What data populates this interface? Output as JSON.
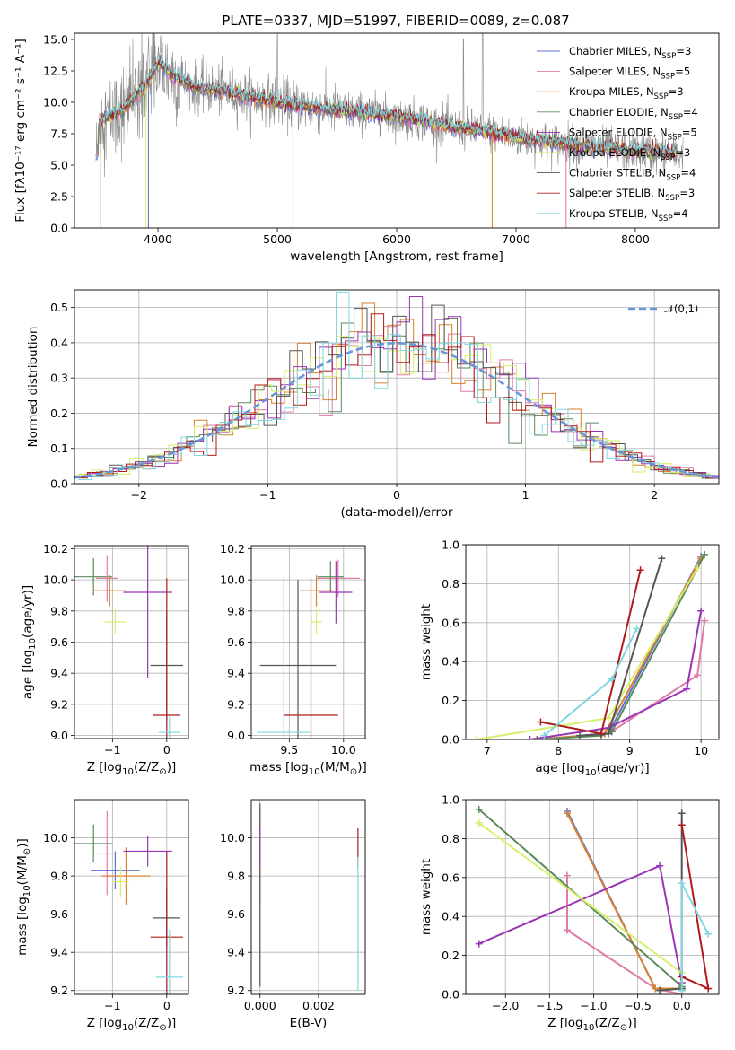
{
  "colors": {
    "chabrier_miles": "#5b6fd6",
    "salpeter_miles": "#e07aa8",
    "kroupa_miles": "#d9822b",
    "chabrier_elodie": "#5a8a5a",
    "salpeter_elodie": "#9a35b5",
    "kroupa_elodie": "#d6ef6a",
    "chabrier_stelib": "#555555",
    "salpeter_stelib": "#b01a1a",
    "kroupa_stelib": "#7fd8e0",
    "data_spectrum": "#8a8a8a",
    "normal_curve": "#6a96d8"
  },
  "chart_data": [
    {
      "type": "line",
      "title": "PLATE=0337, MJD=51997, FIBERID=0089, z=0.087",
      "xlabel": "wavelength [Angstrom, rest frame]",
      "ylabel": "Flux [fλ10⁻¹⁷ erg cm⁻² s⁻¹ A⁻¹]",
      "xlim": [
        3300,
        8700
      ],
      "ylim": [
        0,
        15.5
      ],
      "xticks": [
        4000,
        5000,
        6000,
        7000,
        8000
      ],
      "yticks": [
        0.0,
        2.5,
        5.0,
        7.5,
        10.0,
        12.5,
        15.0
      ],
      "legend_position": "top-right",
      "series": [
        {
          "name": "Chabrier MILES, N$_{SSP}$=3",
          "key": "chabrier_miles"
        },
        {
          "name": "Salpeter MILES, N$_{SSP}$=5",
          "key": "salpeter_miles"
        },
        {
          "name": "Kroupa MILES, N$_{SSP}$=3",
          "key": "kroupa_miles"
        },
        {
          "name": "Chabrier ELODIE, N$_{SSP}$=4",
          "key": "chabrier_elodie"
        },
        {
          "name": "Salpeter ELODIE, N$_{SSP}$=5",
          "key": "salpeter_elodie"
        },
        {
          "name": "Kroupa ELODIE, N$_{SSP}$=3",
          "key": "kroupa_elodie"
        },
        {
          "name": "Chabrier STELIB, N$_{SSP}$=4",
          "key": "chabrier_stelib"
        },
        {
          "name": "Salpeter STELIB, N$_{SSP}$=3",
          "key": "salpeter_stelib"
        },
        {
          "name": "Kroupa STELIB, N$_{SSP}$=4",
          "key": "kroupa_stelib"
        }
      ],
      "model_curve": {
        "x": [
          3500,
          3700,
          3900,
          4000,
          4100,
          4300,
          4500,
          4800,
          5000,
          5300,
          5600,
          5900,
          6200,
          6500,
          6800,
          7000,
          7300,
          7600,
          7900,
          8200,
          8400
        ],
        "y": [
          8.6,
          9.3,
          11.5,
          13.2,
          12.3,
          11.2,
          11.0,
          10.4,
          10.0,
          9.6,
          9.3,
          9.0,
          8.6,
          8.0,
          7.6,
          7.2,
          6.8,
          6.5,
          6.2,
          6.0,
          5.9
        ]
      }
    },
    {
      "type": "histogram",
      "xlabel": "(data-model)/error",
      "ylabel": "Normed distribution",
      "xlim": [
        -2.5,
        2.5
      ],
      "ylim": [
        0,
        0.55
      ],
      "xticks": [
        -2,
        -1,
        0,
        1,
        2
      ],
      "yticks": [
        0.0,
        0.1,
        0.2,
        0.3,
        0.4,
        0.5
      ],
      "legend": {
        "label": "$\\mathcal{N}(0,1)$",
        "position": "top-right"
      },
      "bin_width": 0.1
    },
    {
      "type": "scatter",
      "xlabel": "Z [log$_{10}$(Z/Z$_\\odot$)]",
      "ylabel": "age  [log$_{10}$($age/yr$)]",
      "xlim": [
        -1.7,
        0.4
      ],
      "ylim": [
        8.98,
        10.22
      ],
      "xticks": [
        -1,
        0
      ],
      "yticks": [
        9.0,
        9.2,
        9.4,
        9.6,
        9.8,
        10.0,
        10.2
      ],
      "points": [
        {
          "key": "chabrier_elodie",
          "x": -1.35,
          "y": 10.02,
          "xerr": 0.35,
          "yerr": 0.12
        },
        {
          "key": "salpeter_miles",
          "x": -1.1,
          "y": 10.01,
          "xerr": 0.2,
          "yerr": 0.15
        },
        {
          "key": "kroupa_miles",
          "x": -1.05,
          "y": 9.93,
          "xerr": 0.3,
          "yerr": 0.1
        },
        {
          "key": "salpeter_elodie",
          "x": -0.35,
          "y": 9.92,
          "xerr": 0.45,
          "yerr": 0.55
        },
        {
          "key": "kroupa_elodie",
          "x": -0.95,
          "y": 9.73,
          "xerr": 0.2,
          "yerr": 0.08
        },
        {
          "key": "chabrier_stelib",
          "x": 0.0,
          "y": 9.45,
          "xerr": 0.3,
          "yerr": 0.35
        },
        {
          "key": "salpeter_stelib",
          "x": 0.0,
          "y": 9.13,
          "xerr": 0.25,
          "yerr": 0.88
        },
        {
          "key": "kroupa_stelib",
          "x": 0.05,
          "y": 9.02,
          "xerr": 0.2,
          "yerr": 0.1
        }
      ]
    },
    {
      "type": "scatter",
      "xlabel": "mass [log$_{10}$($M/M_\\odot$)]",
      "xlim": [
        9.15,
        10.2
      ],
      "ylim": [
        8.98,
        10.22
      ],
      "xticks": [
        9.5,
        10.0
      ],
      "yticks": [
        9.0,
        9.2,
        9.4,
        9.6,
        9.8,
        10.0,
        10.2
      ],
      "points": [
        {
          "key": "salpeter_miles",
          "x": 9.95,
          "y": 10.01,
          "xerr": 0.2,
          "yerr": 0.12
        },
        {
          "key": "kroupa_miles",
          "x": 9.75,
          "y": 9.93,
          "xerr": 0.15,
          "yerr": 0.1
        },
        {
          "key": "chabrier_elodie",
          "x": 9.88,
          "y": 10.02,
          "xerr": 0.12,
          "yerr": 0.1
        },
        {
          "key": "salpeter_elodie",
          "x": 9.93,
          "y": 9.92,
          "xerr": 0.15,
          "yerr": 0.2
        },
        {
          "key": "kroupa_elodie",
          "x": 9.75,
          "y": 9.73,
          "xerr": 0.05,
          "yerr": 0.08
        },
        {
          "key": "chabrier_stelib",
          "x": 9.58,
          "y": 9.45,
          "xerr": 0.35,
          "yerr": 0.55
        },
        {
          "key": "salpeter_stelib",
          "x": 9.7,
          "y": 9.13,
          "xerr": 0.25,
          "yerr": 0.88
        },
        {
          "key": "kroupa_stelib",
          "x": 9.45,
          "y": 9.02,
          "xerr": 0.25,
          "yerr": 1.0
        }
      ]
    },
    {
      "type": "line",
      "xlabel": "age  [log$_{10}$($age/yr$)]",
      "ylabel": "mass weight",
      "xlim": [
        6.7,
        10.25
      ],
      "ylim": [
        0,
        1.0
      ],
      "xticks": [
        7,
        8,
        9,
        10
      ],
      "yticks": [
        0.0,
        0.2,
        0.4,
        0.6,
        0.8,
        1.0
      ],
      "series": [
        {
          "key": "chabrier_miles",
          "x": [
            7.8,
            8.6,
            8.7,
            10.0
          ],
          "y": [
            0.0,
            0.03,
            0.03,
            0.94
          ]
        },
        {
          "key": "salpeter_miles",
          "x": [
            7.7,
            8.7,
            9.95,
            10.05
          ],
          "y": [
            0.0,
            0.03,
            0.33,
            0.61
          ]
        },
        {
          "key": "kroupa_miles",
          "x": [
            7.7,
            8.65,
            10.0
          ],
          "y": [
            0.0,
            0.03,
            0.93
          ]
        },
        {
          "key": "chabrier_elodie",
          "x": [
            7.7,
            8.6,
            8.75,
            10.05
          ],
          "y": [
            0.0,
            0.02,
            0.04,
            0.95
          ]
        },
        {
          "key": "salpeter_elodie",
          "x": [
            7.6,
            8.7,
            9.8,
            10.0
          ],
          "y": [
            0.0,
            0.06,
            0.26,
            0.66
          ]
        },
        {
          "key": "kroupa_elodie",
          "x": [
            6.85,
            8.7,
            9.95
          ],
          "y": [
            0.0,
            0.11,
            0.88
          ]
        },
        {
          "key": "chabrier_stelib",
          "x": [
            8.3,
            8.7,
            9.45
          ],
          "y": [
            0.02,
            0.03,
            0.93
          ]
        },
        {
          "key": "salpeter_stelib",
          "x": [
            7.75,
            8.6,
            9.15
          ],
          "y": [
            0.09,
            0.03,
            0.87
          ]
        },
        {
          "key": "kroupa_stelib",
          "x": [
            7.8,
            8.75,
            9.1
          ],
          "y": [
            0.02,
            0.31,
            0.57
          ]
        }
      ]
    },
    {
      "type": "scatter",
      "xlabel": "Z [log$_{10}$(Z/Z$_\\odot$)]",
      "ylabel": "mass [log$_{10}$($M/M_\\odot$)]",
      "xlim": [
        -1.7,
        0.4
      ],
      "ylim": [
        9.18,
        10.2
      ],
      "xticks": [
        -1,
        0
      ],
      "yticks": [
        9.2,
        9.4,
        9.6,
        9.8,
        10.0
      ],
      "points": [
        {
          "key": "chabrier_elodie",
          "x": -1.35,
          "y": 9.97,
          "xerr": 0.35,
          "yerr": 0.1
        },
        {
          "key": "salpeter_miles",
          "x": -1.1,
          "y": 9.92,
          "xerr": 0.2,
          "yerr": 0.22
        },
        {
          "key": "chabrier_miles",
          "x": -0.95,
          "y": 9.83,
          "xerr": 0.45,
          "yerr": 0.1
        },
        {
          "key": "kroupa_miles",
          "x": -0.75,
          "y": 9.8,
          "xerr": 0.45,
          "yerr": 0.15
        },
        {
          "key": "salpeter_elodie",
          "x": -0.35,
          "y": 9.93,
          "xerr": 0.45,
          "yerr": 0.08
        },
        {
          "key": "kroupa_elodie",
          "x": -0.85,
          "y": 9.77,
          "xerr": 0.15,
          "yerr": 0.08
        },
        {
          "key": "chabrier_stelib",
          "x": 0.0,
          "y": 9.58,
          "xerr": 0.25,
          "yerr": 0.15
        },
        {
          "key": "salpeter_stelib",
          "x": 0.0,
          "y": 9.48,
          "xerr": 0.3,
          "yerr": 0.45
        },
        {
          "key": "kroupa_stelib",
          "x": 0.05,
          "y": 9.27,
          "xerr": 0.25,
          "yerr": 0.25
        }
      ]
    },
    {
      "type": "scatter",
      "xlabel": "E(B-V)",
      "xlim": [
        -0.0003,
        0.0036
      ],
      "ylim": [
        9.18,
        10.2
      ],
      "xticks": [
        0.0,
        0.002
      ],
      "xtick_labels": [
        "0.000",
        "0.002"
      ],
      "yticks": [
        9.2,
        9.4,
        9.6,
        9.8,
        10.0
      ],
      "points": [
        {
          "key": "salpeter_miles",
          "x": 0.0,
          "y": 9.9,
          "yerr": 0.25
        },
        {
          "key": "chabrier_stelib",
          "x": 0.0,
          "y": 9.7,
          "yerr": 0.48
        },
        {
          "key": "salpeter_elodie",
          "x": 0.0,
          "y": 9.95,
          "yerr": 0.1
        },
        {
          "key": "salpeter_stelib",
          "x": 0.00335,
          "y": 9.95,
          "yerr": 0.1
        },
        {
          "key": "kroupa_stelib",
          "x": 0.00335,
          "y": 9.55,
          "yerr": 0.35
        }
      ]
    },
    {
      "type": "line",
      "xlabel": "Z [log$_{10}$(Z/Z$_\\odot$)]",
      "ylabel": "mass weight",
      "xlim": [
        -2.45,
        0.42
      ],
      "ylim": [
        0,
        1.0
      ],
      "xticks": [
        -2.0,
        -1.5,
        -1.0,
        -0.5,
        0.0
      ],
      "yticks": [
        0.0,
        0.2,
        0.4,
        0.6,
        0.8,
        1.0
      ],
      "series": [
        {
          "key": "chabrier_miles",
          "x": [
            -1.3,
            -0.3,
            0.0
          ],
          "y": [
            0.94,
            0.03,
            0.03
          ]
        },
        {
          "key": "salpeter_miles",
          "x": [
            -1.3,
            -1.3,
            -1.3,
            -0.3,
            0.0
          ],
          "y": [
            0.61,
            0.33,
            0.33,
            0.03,
            0.0
          ]
        },
        {
          "key": "kroupa_miles",
          "x": [
            -1.3,
            -0.3,
            0.0
          ],
          "y": [
            0.93,
            0.03,
            0.03
          ]
        },
        {
          "key": "chabrier_elodie",
          "x": [
            -2.3,
            0.0,
            0.0
          ],
          "y": [
            0.95,
            0.04,
            0.02
          ]
        },
        {
          "key": "salpeter_elodie",
          "x": [
            -2.3,
            -0.25,
            0.0
          ],
          "y": [
            0.26,
            0.66,
            0.06
          ]
        },
        {
          "key": "kroupa_elodie",
          "x": [
            -2.3,
            0.0,
            0.0
          ],
          "y": [
            0.88,
            0.11,
            0.0
          ]
        },
        {
          "key": "chabrier_stelib",
          "x": [
            0.0,
            0.0,
            -0.25
          ],
          "y": [
            0.93,
            0.03,
            0.02
          ]
        },
        {
          "key": "salpeter_stelib",
          "x": [
            0.0,
            0.3,
            0.0
          ],
          "y": [
            0.87,
            0.03,
            0.09
          ]
        },
        {
          "key": "kroupa_stelib",
          "x": [
            0.0,
            0.0,
            0.3
          ],
          "y": [
            0.02,
            0.57,
            0.31
          ]
        }
      ]
    }
  ]
}
